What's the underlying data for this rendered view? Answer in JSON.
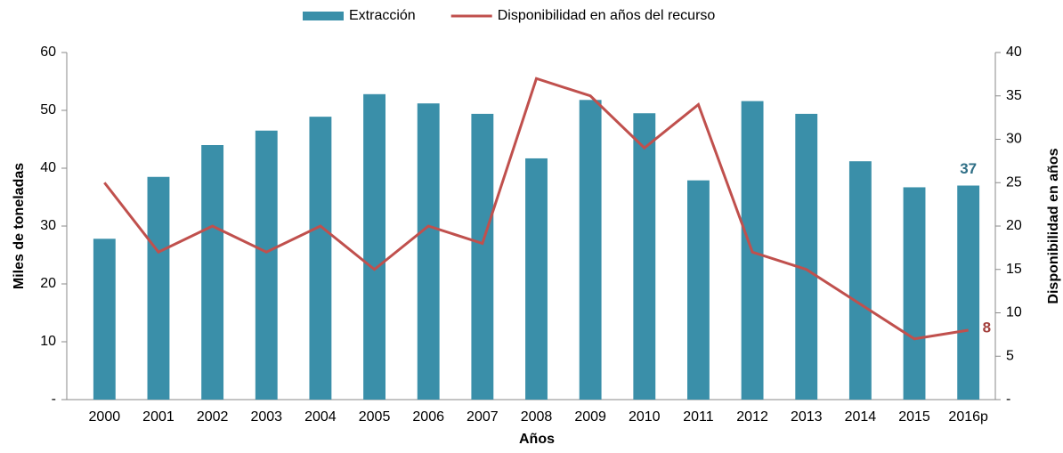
{
  "chart_data": {
    "type": "bar_line",
    "categories": [
      "2000",
      "2001",
      "2002",
      "2003",
      "2004",
      "2005",
      "2006",
      "2007",
      "2008",
      "2009",
      "2010",
      "2011",
      "2012",
      "2013",
      "2014",
      "2015",
      "2016p"
    ],
    "series": [
      {
        "name": "Extracción",
        "type": "bar",
        "color": "#3a8fa9",
        "label_color": "#2f6f86",
        "values": [
          27.8,
          38.5,
          44,
          46.5,
          48.9,
          52.8,
          51.2,
          49.4,
          41.7,
          51.8,
          49.5,
          37.9,
          51.6,
          49.4,
          41.2,
          36.7,
          37
        ],
        "value_labels": [
          null,
          null,
          null,
          null,
          null,
          null,
          null,
          null,
          null,
          null,
          null,
          null,
          null,
          null,
          null,
          null,
          "37"
        ]
      },
      {
        "name": "Disponibilidad en años del recurso",
        "type": "line",
        "axis": "y2",
        "color": "#c0504d",
        "label_color": "#a33f3c",
        "values": [
          25,
          17,
          20,
          17,
          20,
          15,
          20,
          18,
          37,
          35,
          29,
          34,
          17,
          15,
          11,
          7,
          8
        ],
        "value_labels": [
          null,
          null,
          null,
          null,
          null,
          null,
          null,
          null,
          null,
          null,
          null,
          null,
          null,
          null,
          null,
          null,
          "8"
        ]
      }
    ],
    "xlabel": "Años",
    "ylabel": "Miles de toneladas",
    "y2label": "Disponibilidad en años",
    "ylim": [
      0,
      60
    ],
    "yticks": [
      {
        "value": 0,
        "label": "-"
      },
      10,
      20,
      30,
      40,
      50,
      60
    ],
    "y2lim": [
      0,
      40
    ],
    "y2ticks": [
      {
        "value": 0,
        "label": "-"
      },
      5,
      10,
      15,
      20,
      25,
      30,
      35,
      40
    ],
    "legend": "top"
  }
}
